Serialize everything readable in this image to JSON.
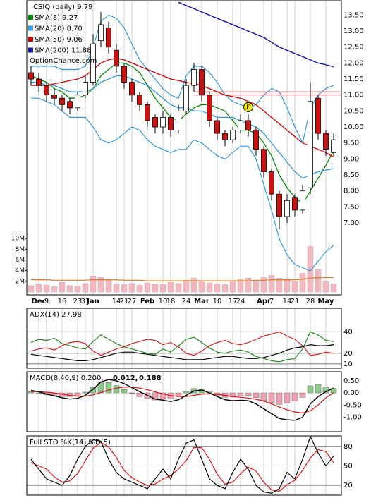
{
  "chart_data": [
    {
      "type": "candlestick",
      "title": "CSIQ (daily) 9.79",
      "watermark": "OptionChance.com",
      "categories": [
        null,
        "Dec",
        "9",
        null,
        "16",
        null,
        "23",
        "31",
        "Jan",
        null,
        null,
        "14",
        "21",
        "27",
        null,
        "Feb",
        null,
        "10",
        "18",
        null,
        "24",
        null,
        "Mar",
        null,
        "10",
        null,
        "17",
        "24",
        null,
        null,
        "Apr",
        "7",
        null,
        "14",
        "21",
        null,
        "28",
        null,
        "May",
        null
      ],
      "open": [
        11.7,
        11.5,
        11.3,
        11.0,
        10.9,
        10.8,
        10.6,
        11.0,
        11.4,
        12.7,
        13.1,
        12.4,
        11.9,
        11.4,
        11.0,
        10.7,
        10.3,
        10.0,
        10.3,
        9.9,
        10.5,
        11.3,
        11.8,
        11.0,
        10.2,
        9.8,
        9.6,
        9.9,
        10.2,
        9.9,
        9.3,
        8.6,
        7.9,
        7.2,
        7.8,
        7.4,
        8.1,
        10.9,
        9.8,
        9.2
      ],
      "high": [
        11.9,
        11.7,
        11.4,
        11.2,
        11.0,
        10.9,
        11.1,
        11.6,
        12.9,
        13.6,
        13.3,
        12.6,
        12.0,
        11.5,
        11.1,
        10.8,
        10.4,
        10.5,
        10.4,
        10.7,
        11.5,
        12.0,
        11.9,
        11.1,
        10.3,
        9.9,
        10.0,
        10.4,
        10.4,
        10.0,
        9.4,
        8.7,
        8.0,
        7.9,
        7.9,
        8.2,
        11.4,
        11.0,
        9.9,
        9.8
      ],
      "low": [
        11.3,
        11.1,
        10.8,
        10.7,
        10.5,
        10.4,
        10.5,
        10.9,
        11.3,
        12.5,
        12.3,
        11.7,
        11.2,
        10.8,
        10.5,
        10.0,
        9.8,
        9.8,
        9.7,
        9.8,
        10.4,
        11.1,
        10.8,
        10.0,
        9.6,
        9.4,
        9.5,
        9.8,
        9.7,
        9.1,
        8.4,
        7.7,
        6.8,
        7.0,
        7.2,
        7.3,
        7.9,
        9.6,
        9.1,
        9.1
      ],
      "close": [
        11.5,
        11.3,
        11.0,
        10.9,
        10.7,
        10.6,
        11.0,
        11.4,
        12.6,
        13.2,
        12.5,
        11.9,
        11.4,
        11.0,
        10.7,
        10.2,
        10.0,
        10.3,
        9.9,
        10.5,
        11.3,
        11.8,
        11.0,
        10.2,
        9.8,
        9.6,
        9.9,
        10.2,
        9.9,
        9.3,
        8.6,
        7.9,
        7.2,
        7.7,
        7.4,
        8.0,
        10.8,
        9.8,
        9.3,
        9.6
      ],
      "color_up": "#ffffff",
      "color_down": "#cc1111",
      "series": [
        {
          "name": "SMA(8) 9.27",
          "color": "#008800",
          "values": [
            11.6,
            11.5,
            11.4,
            11.2,
            11.1,
            10.9,
            10.9,
            11.0,
            11.2,
            11.6,
            11.8,
            12.0,
            12.0,
            11.9,
            11.7,
            11.3,
            10.9,
            10.6,
            10.3,
            10.2,
            10.4,
            10.6,
            10.7,
            10.7,
            10.6,
            10.5,
            10.2,
            9.9,
            9.9,
            9.8,
            9.5,
            9.1,
            8.5,
            8.1,
            7.8,
            7.6,
            8.0,
            8.4,
            8.8,
            9.27
          ]
        },
        {
          "name": "SMA(20) 8.70",
          "color": "#3399dd",
          "values": [
            11.4,
            11.4,
            11.3,
            11.3,
            11.2,
            11.1,
            11.1,
            11.1,
            11.2,
            11.4,
            11.5,
            11.6,
            11.6,
            11.5,
            11.4,
            11.3,
            11.1,
            10.9,
            10.7,
            10.6,
            10.6,
            10.5,
            10.5,
            10.4,
            10.3,
            10.3,
            10.3,
            10.2,
            10.1,
            10.0,
            9.8,
            9.5,
            9.2,
            8.9,
            8.6,
            8.4,
            8.5,
            8.6,
            8.65,
            8.7
          ]
        },
        {
          "name": "SMA(50) 9.06",
          "color": "#cc0000",
          "values": [
            11.3,
            11.3,
            11.3,
            11.35,
            11.4,
            11.45,
            11.5,
            11.6,
            11.8,
            12.0,
            12.1,
            12.15,
            12.1,
            12.0,
            11.9,
            11.8,
            11.7,
            11.6,
            11.5,
            11.45,
            11.4,
            11.35,
            11.3,
            11.2,
            11.1,
            11.0,
            10.95,
            10.9,
            10.8,
            10.7,
            10.5,
            10.3,
            10.1,
            9.9,
            9.7,
            9.5,
            9.4,
            9.3,
            9.2,
            9.06
          ]
        },
        {
          "name": "SMA(200) 11.88",
          "color": "#1a1aa8",
          "values": [
            null,
            null,
            null,
            null,
            null,
            null,
            null,
            null,
            null,
            null,
            null,
            null,
            null,
            null,
            null,
            null,
            null,
            null,
            null,
            13.9,
            13.8,
            13.7,
            13.6,
            13.5,
            13.4,
            13.3,
            13.2,
            13.1,
            13.0,
            12.9,
            12.8,
            12.65,
            12.5,
            12.4,
            12.3,
            12.2,
            12.1,
            12.0,
            11.95,
            11.88
          ]
        }
      ],
      "bands": {
        "color": "#3399dd",
        "upper": [
          11.9,
          11.9,
          11.9,
          11.9,
          11.8,
          11.8,
          11.8,
          11.9,
          12.5,
          13.3,
          13.5,
          13.4,
          13.1,
          12.6,
          12.1,
          11.8,
          11.5,
          11.2,
          11.0,
          10.9,
          11.6,
          11.9,
          11.9,
          11.7,
          11.4,
          11.0,
          10.8,
          10.7,
          10.6,
          10.7,
          11.0,
          11.2,
          11.1,
          10.6,
          10.0,
          9.5,
          10.6,
          11.0,
          11.2,
          11.3
        ],
        "lower": [
          10.9,
          10.9,
          10.8,
          10.7,
          10.5,
          10.3,
          10.3,
          10.3,
          10.0,
          9.6,
          9.5,
          9.6,
          9.8,
          10.0,
          9.9,
          9.6,
          9.4,
          9.3,
          9.2,
          9.3,
          9.3,
          9.6,
          9.5,
          9.3,
          9.1,
          9.0,
          9.2,
          9.4,
          9.4,
          9.0,
          8.2,
          7.4,
          6.5,
          6.0,
          5.7,
          5.6,
          5.5,
          5.8,
          6.1,
          6.3
        ]
      },
      "hlines": {
        "color": "#e06060",
        "start": 21,
        "values": [
          11.0,
          11.1
        ]
      },
      "annotation": {
        "text": "E",
        "index": 28,
        "value": 10.62,
        "color": "#ffee00"
      },
      "ylim": [
        4.75,
        13.95
      ],
      "yticks": [
        {
          "value": 13.5,
          "label": "13.50"
        },
        {
          "value": 13,
          "label": "13.00"
        },
        {
          "value": 12.5,
          "label": "12.50"
        },
        {
          "value": 12,
          "label": "12.00"
        },
        {
          "value": 11.5,
          "label": "11.50"
        },
        {
          "value": 11,
          "label": "11.00"
        },
        {
          "value": 10.5,
          "label": "10.50"
        },
        {
          "value": 10,
          "label": "10.00"
        },
        {
          "value": 9.5,
          "label": "9.50"
        },
        {
          "value": 9,
          "label": "9.00"
        },
        {
          "value": 8.5,
          "label": "8.50"
        },
        {
          "value": 8,
          "label": "8.00"
        },
        {
          "value": 7.5,
          "label": "7.50"
        },
        {
          "value": 7,
          "label": "7.00"
        }
      ],
      "volume": {
        "color": "#f2b8c0",
        "values": [
          1.2,
          1.5,
          1.3,
          1.0,
          1.8,
          1.2,
          1.1,
          1.6,
          3.0,
          2.8,
          2.2,
          1.5,
          1.4,
          1.6,
          1.3,
          1.7,
          1.5,
          1.4,
          1.8,
          1.6,
          2.2,
          2.6,
          1.9,
          1.7,
          1.5,
          1.4,
          2.1,
          2.4,
          2.6,
          2.0,
          2.8,
          3.1,
          2.6,
          2.2,
          2.0,
          3.5,
          8.5,
          4.2,
          2.0,
          1.5
        ],
        "ylim": [
          0,
          12
        ],
        "yticks": [
          {
            "value": 10,
            "label": "10M"
          },
          {
            "value": 8,
            "label": "8M"
          },
          {
            "value": 6,
            "label": "6M"
          },
          {
            "value": 4,
            "label": "4M"
          },
          {
            "value": 2,
            "label": "2M"
          }
        ],
        "average": {
          "color": "#e07820",
          "values": [
            2.3,
            2.3,
            2.3,
            2.2,
            2.2,
            2.2,
            2.2,
            2.2,
            2.3,
            2.3,
            2.3,
            2.3,
            2.2,
            2.2,
            2.2,
            2.1,
            2.1,
            2.1,
            2.1,
            2.1,
            2.1,
            2.1,
            2.1,
            2.1,
            2.1,
            2.1,
            2.1,
            2.1,
            2.1,
            2.2,
            2.2,
            2.3,
            2.3,
            2.3,
            2.3,
            2.4,
            2.6,
            2.7,
            2.7,
            2.7
          ]
        }
      }
    },
    {
      "type": "adx",
      "title": "ADX(14) 27.98",
      "ylim": [
        6,
        62
      ],
      "yticks": [
        40,
        20,
        10
      ],
      "series": [
        {
          "color": "#000000",
          "values": [
            19,
            18,
            17,
            16,
            15,
            14,
            13,
            13,
            14,
            16,
            18,
            20,
            21,
            21,
            20,
            19,
            18,
            17,
            16,
            15,
            14,
            14,
            14,
            15,
            16,
            17,
            17,
            16,
            15,
            15,
            16,
            18,
            20,
            23,
            25,
            26,
            28,
            27,
            27,
            27.98
          ]
        },
        {
          "color": "#228822",
          "values": [
            30,
            33,
            32,
            34,
            29,
            27,
            25,
            24,
            31,
            37,
            33,
            29,
            26,
            24,
            22,
            20,
            19,
            24,
            21,
            27,
            33,
            35,
            30,
            25,
            21,
            20,
            22,
            23,
            21,
            17,
            15,
            13,
            12,
            14,
            15,
            24,
            40,
            37,
            32,
            31
          ]
        },
        {
          "color": "#cc2222",
          "values": [
            22,
            24,
            25,
            23,
            27,
            30,
            31,
            29,
            22,
            18,
            21,
            24,
            26,
            29,
            31,
            33,
            32,
            28,
            30,
            26,
            20,
            18,
            22,
            27,
            30,
            32,
            29,
            28,
            30,
            33,
            36,
            38,
            40,
            36,
            33,
            27,
            18,
            19,
            21,
            20
          ]
        }
      ]
    },
    {
      "type": "macd",
      "title": "MACD(8,40,9) 0.200,",
      "signal_label": "0.012,",
      "histogram_label": "0.188",
      "ylim": [
        -1.59,
        0.87
      ],
      "yticks": [
        {
          "value": 0.5,
          "label": "0.50"
        },
        {
          "value": 0,
          "label": "0.00"
        },
        {
          "value": -0.5,
          "label": "-0.50"
        },
        {
          "value": -1,
          "label": "-1.00"
        }
      ],
      "macd": {
        "color": "#000000",
        "values": [
          0.1,
          0.05,
          -0.05,
          -0.12,
          -0.2,
          -0.25,
          -0.22,
          -0.1,
          0.15,
          0.45,
          0.55,
          0.5,
          0.38,
          0.22,
          0.05,
          -0.1,
          -0.25,
          -0.3,
          -0.35,
          -0.28,
          -0.1,
          0.08,
          0.12,
          0.0,
          -0.15,
          -0.28,
          -0.32,
          -0.3,
          -0.32,
          -0.45,
          -0.65,
          -0.85,
          -1.05,
          -1.1,
          -1.12,
          -1.0,
          -0.45,
          -0.15,
          0.05,
          0.2
        ]
      },
      "signal": {
        "color": "#dd1111",
        "values": [
          0.05,
          0.05,
          0.03,
          0.0,
          -0.05,
          -0.1,
          -0.13,
          -0.13,
          -0.08,
          0.02,
          0.12,
          0.2,
          0.24,
          0.24,
          0.2,
          0.13,
          0.04,
          -0.04,
          -0.11,
          -0.15,
          -0.15,
          -0.1,
          -0.05,
          -0.04,
          -0.06,
          -0.1,
          -0.15,
          -0.18,
          -0.21,
          -0.26,
          -0.34,
          -0.45,
          -0.58,
          -0.69,
          -0.78,
          -0.82,
          -0.74,
          -0.5,
          -0.2,
          0.012
        ]
      },
      "histogram": {
        "color": "#2255cc",
        "color_up": "#88cc88",
        "color_down": "#f0a0b0",
        "values": [
          0.05,
          0.0,
          -0.08,
          -0.12,
          -0.15,
          -0.15,
          -0.09,
          0.03,
          0.23,
          0.43,
          0.43,
          0.3,
          0.14,
          -0.02,
          -0.15,
          -0.23,
          -0.29,
          -0.26,
          -0.24,
          -0.13,
          0.05,
          0.18,
          0.17,
          0.04,
          -0.09,
          -0.18,
          -0.17,
          -0.12,
          -0.11,
          -0.19,
          -0.31,
          -0.4,
          -0.47,
          -0.41,
          -0.34,
          -0.18,
          0.29,
          0.35,
          0.25,
          0.188
        ]
      }
    },
    {
      "type": "stochastic",
      "title": "Full STO %K(14) %D(5)",
      "ylim": [
        5,
        96
      ],
      "yticks": [
        80,
        50,
        20
      ],
      "k": {
        "color": "#000000",
        "values": [
          60,
          45,
          30,
          25,
          20,
          35,
          60,
          80,
          90,
          88,
          60,
          40,
          30,
          25,
          20,
          15,
          30,
          45,
          30,
          60,
          85,
          90,
          60,
          30,
          20,
          15,
          40,
          60,
          45,
          20,
          10,
          8,
          15,
          40,
          30,
          60,
          95,
          70,
          50,
          65
        ]
      },
      "d": {
        "color": "#dd1111",
        "values": [
          55,
          50,
          45,
          33,
          25,
          27,
          38,
          58,
          77,
          86,
          79,
          63,
          43,
          32,
          25,
          20,
          22,
          30,
          35,
          45,
          58,
          78,
          78,
          60,
          37,
          22,
          25,
          38,
          48,
          42,
          25,
          13,
          11,
          21,
          28,
          43,
          62,
          75,
          72,
          55
        ]
      }
    }
  ]
}
